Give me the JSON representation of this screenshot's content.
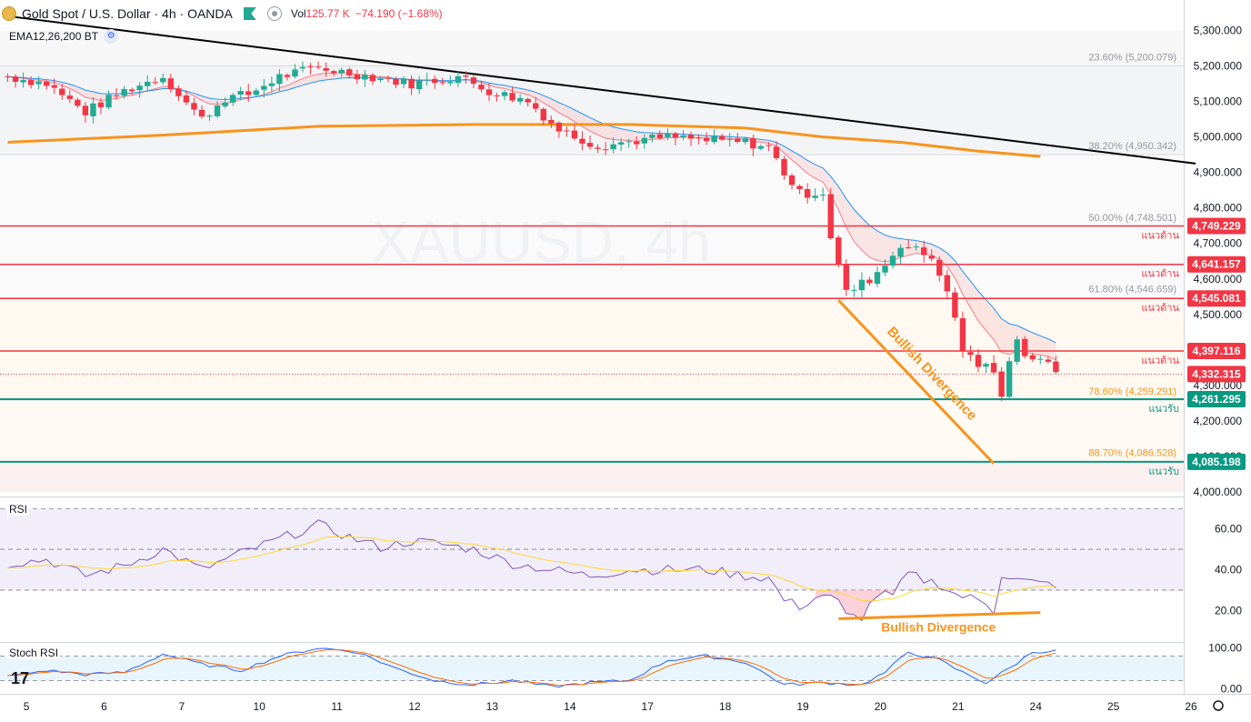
{
  "header": {
    "title": "Gold Spot / U.S. Dollar · 4h · OANDA",
    "vol_label": "Vol",
    "vol_value": "125.77 K",
    "change": "−74.190 (−1.68%)"
  },
  "indicator": {
    "label": "EMA12,26,200 BT"
  },
  "watermark": "XAUUSD, 4h",
  "colors": {
    "up": "#22ab94",
    "down": "#f23645",
    "ema_fast": "#f23645",
    "ema_slow": "#2196f3",
    "ema200": "#f7941d",
    "divergence": "#f7941d",
    "resistance": "#f23645",
    "support": "#089981"
  },
  "chart_data": [
    {
      "type": "candlestick",
      "title": "Gold Spot / U.S. Dollar · 4h · OANDA",
      "ylim": [
        3990,
        5360
      ],
      "y_ticks": [
        {
          "v": 5300,
          "label": "5,300.000"
        },
        {
          "v": 5200,
          "label": "5,200.000"
        },
        {
          "v": 5100,
          "label": "5,100.000"
        },
        {
          "v": 5000,
          "label": "5,000.000"
        },
        {
          "v": 4900,
          "label": "4,900.000"
        },
        {
          "v": 4800,
          "label": "4,800.000"
        },
        {
          "v": 4700,
          "label": "4,700.000"
        },
        {
          "v": 4600,
          "label": "4,600.000"
        },
        {
          "v": 4500,
          "label": "4,500.000"
        },
        {
          "v": 4400,
          "label": "4,400.000"
        },
        {
          "v": 4300,
          "label": "4,300.000"
        },
        {
          "v": 4200,
          "label": "4,200.000"
        },
        {
          "v": 4100,
          "label": "4,100.000"
        },
        {
          "v": 4000,
          "label": "4,000.000"
        }
      ],
      "x_ticks": [
        {
          "i": 1,
          "label": "5"
        },
        {
          "i": 11,
          "label": "6"
        },
        {
          "i": 21,
          "label": "7"
        },
        {
          "i": 31,
          "label": "10"
        },
        {
          "i": 41,
          "label": "11"
        },
        {
          "i": 51,
          "label": "12"
        },
        {
          "i": 61,
          "label": "13"
        },
        {
          "i": 71,
          "label": "14"
        },
        {
          "i": 81,
          "label": "17"
        },
        {
          "i": 91,
          "label": "18"
        },
        {
          "i": 101,
          "label": "19"
        },
        {
          "i": 111,
          "label": "20"
        },
        {
          "i": 121,
          "label": "21"
        },
        {
          "i": 131,
          "label": "24"
        },
        {
          "i": 141,
          "label": "25"
        },
        {
          "i": 151,
          "label": "26"
        }
      ],
      "bars": 136,
      "anchors": [
        [
          0,
          5170
        ],
        [
          5,
          5150
        ],
        [
          10,
          5070
        ],
        [
          15,
          5130
        ],
        [
          20,
          5170
        ],
        [
          25,
          5050
        ],
        [
          28,
          5110
        ],
        [
          31,
          5120
        ],
        [
          35,
          5170
        ],
        [
          40,
          5195
        ],
        [
          44,
          5180
        ],
        [
          48,
          5165
        ],
        [
          52,
          5150
        ],
        [
          58,
          5170
        ],
        [
          62,
          5130
        ],
        [
          67,
          5100
        ],
        [
          71,
          5020
        ],
        [
          76,
          4975
        ],
        [
          81,
          4990
        ],
        [
          85,
          5000
        ],
        [
          90,
          4990
        ],
        [
          95,
          4985
        ],
        [
          98,
          4970
        ],
        [
          100,
          4900
        ],
        [
          102,
          4840
        ],
        [
          105,
          4845
        ],
        [
          106,
          4720
        ],
        [
          108,
          4560
        ],
        [
          111,
          4600
        ],
        [
          113,
          4640
        ],
        [
          115,
          4700
        ],
        [
          117,
          4680
        ],
        [
          119,
          4660
        ],
        [
          120,
          4620
        ],
        [
          122,
          4490
        ],
        [
          123,
          4400
        ],
        [
          125,
          4360
        ],
        [
          127,
          4340
        ],
        [
          128,
          4260
        ],
        [
          129,
          4380
        ],
        [
          130,
          4440
        ],
        [
          131,
          4380
        ],
        [
          133,
          4380
        ],
        [
          135,
          4330
        ]
      ],
      "fib_levels": [
        {
          "label": "23.60% (5,200.079)",
          "v": 5200.079
        },
        {
          "label": "38.20% (4,950.342)",
          "v": 4950.342
        },
        {
          "label": "50.00% (4,748.501)",
          "v": 4748.501
        },
        {
          "label": "61.80% (4,546.659)",
          "v": 4546.659
        },
        {
          "label": "78.60% (4,259.291)",
          "v": 4259.291
        },
        {
          "label": "88.70% (4,086.528)",
          "v": 4086.528
        }
      ],
      "resistance_levels": [
        {
          "v": 4749.229,
          "price": "4,749.229",
          "label": "แนวต้าน"
        },
        {
          "v": 4641.157,
          "price": "4,641.157",
          "label": "แนวต้าน"
        },
        {
          "v": 4545.081,
          "price": "4,545.081",
          "label": "แนวต้าน"
        },
        {
          "v": 4397.116,
          "price": "4,397.116",
          "label": "แนวต้าน"
        }
      ],
      "support_levels": [
        {
          "v": 4261.295,
          "price": "4,261.295",
          "label": "แนวรับ"
        },
        {
          "v": 4085.198,
          "price": "4,085.198",
          "label": "แนวรับ"
        }
      ],
      "last_price": {
        "v": 4332.315,
        "price": "4,332.315"
      },
      "trendline": {
        "i0": 0,
        "v0": 5340,
        "i1": 153,
        "v1": 4925
      },
      "ema200_end_bar": 133,
      "divergence_price": {
        "label": "Bullish Divergence",
        "i0": 107,
        "v0": 4540,
        "i1": 127,
        "v1": 4080
      }
    },
    {
      "type": "line",
      "title": "RSI",
      "ylim": [
        5,
        75
      ],
      "y_ticks": [
        {
          "v": 60,
          "label": "60.00"
        },
        {
          "v": 40,
          "label": "40.00"
        },
        {
          "v": 20,
          "label": "20.00"
        }
      ],
      "guides": [
        70,
        50,
        30
      ],
      "anchors": [
        [
          0,
          43
        ],
        [
          5,
          45
        ],
        [
          10,
          37
        ],
        [
          15,
          42
        ],
        [
          20,
          50
        ],
        [
          25,
          40
        ],
        [
          30,
          48
        ],
        [
          35,
          55
        ],
        [
          40,
          62
        ],
        [
          44,
          56
        ],
        [
          48,
          51
        ],
        [
          52,
          54
        ],
        [
          55,
          53
        ],
        [
          60,
          50
        ],
        [
          65,
          43
        ],
        [
          70,
          40
        ],
        [
          75,
          37
        ],
        [
          80,
          40
        ],
        [
          85,
          40
        ],
        [
          90,
          40
        ],
        [
          95,
          37
        ],
        [
          98,
          36
        ],
        [
          100,
          25
        ],
        [
          102,
          22
        ],
        [
          105,
          28
        ],
        [
          107,
          24
        ],
        [
          108,
          17
        ],
        [
          110,
          17
        ],
        [
          112,
          28
        ],
        [
          114,
          27
        ],
        [
          116,
          38
        ],
        [
          118,
          35
        ],
        [
          120,
          33
        ],
        [
          122,
          28
        ],
        [
          124,
          26
        ],
        [
          126,
          24
        ],
        [
          127,
          20
        ],
        [
          128,
          38
        ],
        [
          130,
          35
        ],
        [
          133,
          33
        ]
      ],
      "divergence": {
        "label": "Bullish Divergence",
        "i0": 107,
        "v0": 16,
        "i1": 133,
        "v1": 19
      }
    },
    {
      "type": "line",
      "title": "Stoch RSI",
      "ylim": [
        -10,
        110
      ],
      "y_ticks": [
        {
          "v": 100,
          "label": "100.00"
        },
        {
          "v": 0,
          "label": "0.00"
        }
      ],
      "guides": [
        80,
        20
      ],
      "anchors": [
        [
          0,
          30
        ],
        [
          5,
          45
        ],
        [
          10,
          35
        ],
        [
          15,
          40
        ],
        [
          20,
          85
        ],
        [
          25,
          60
        ],
        [
          30,
          45
        ],
        [
          35,
          80
        ],
        [
          40,
          100
        ],
        [
          45,
          90
        ],
        [
          50,
          50
        ],
        [
          55,
          20
        ],
        [
          60,
          10
        ],
        [
          65,
          20
        ],
        [
          70,
          5
        ],
        [
          75,
          15
        ],
        [
          80,
          20
        ],
        [
          85,
          70
        ],
        [
          90,
          80
        ],
        [
          95,
          65
        ],
        [
          100,
          10
        ],
        [
          105,
          15
        ],
        [
          110,
          10
        ],
        [
          113,
          40
        ],
        [
          116,
          90
        ],
        [
          118,
          80
        ],
        [
          120,
          70
        ],
        [
          123,
          40
        ],
        [
          126,
          15
        ],
        [
          129,
          50
        ],
        [
          132,
          90
        ],
        [
          134,
          92
        ]
      ]
    }
  ]
}
